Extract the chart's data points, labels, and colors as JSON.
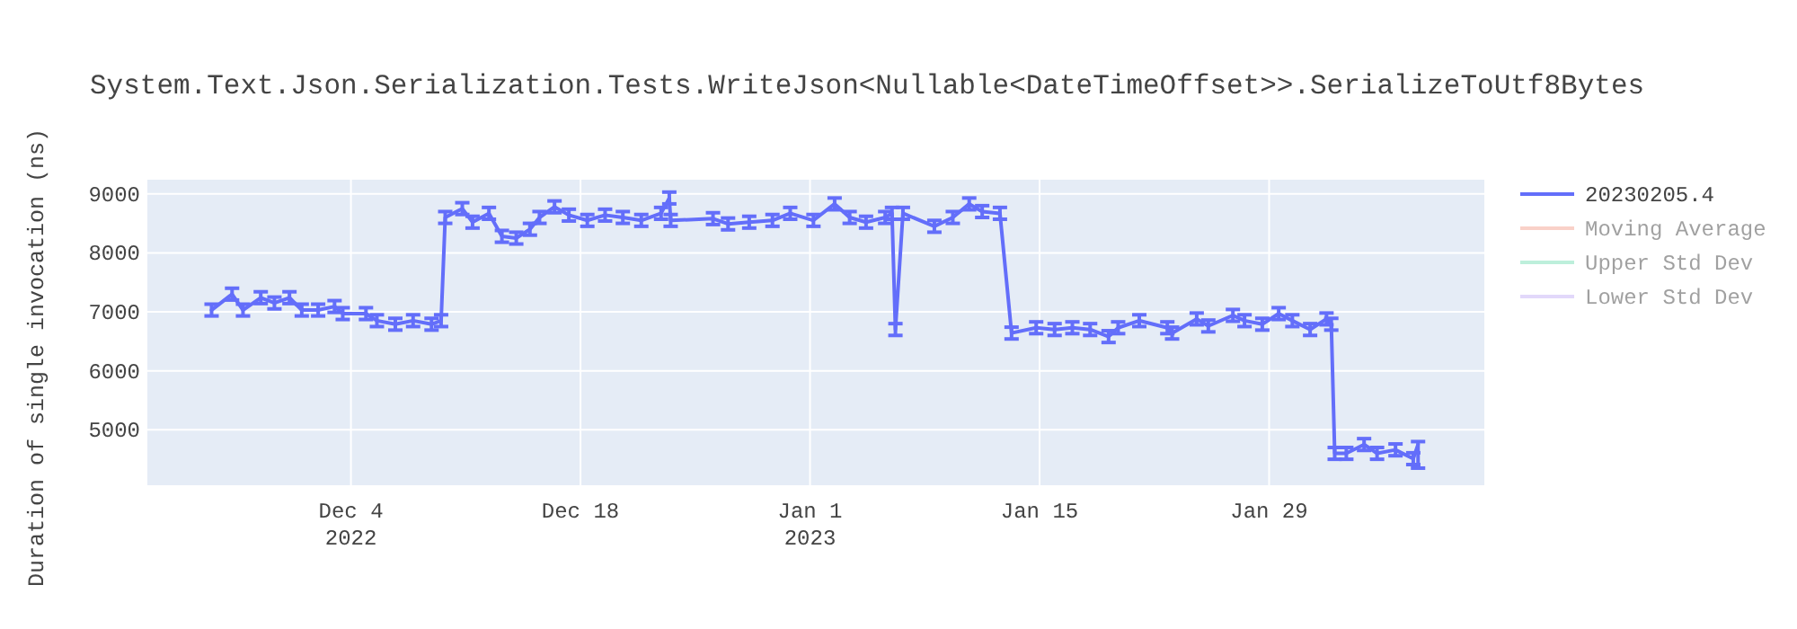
{
  "chart_data": {
    "type": "line",
    "title": "System.Text.Json.Serialization.Tests.WriteJson<Nullable<DateTimeOffset>>.SerializeToUtf8Bytes",
    "ylabel": "Duration of single invocation (ns)",
    "xlim": [
      "2022-11-21T14:00",
      "2023-02-11T03:00"
    ],
    "ylim": [
      4060,
      9240
    ],
    "xticks": [
      {
        "value": "2022-12-04",
        "label": "Dec 4\n2022"
      },
      {
        "value": "2022-12-18",
        "label": "Dec 18"
      },
      {
        "value": "2023-01-01",
        "label": "Jan 1\n2023"
      },
      {
        "value": "2023-01-15",
        "label": "Jan 15"
      },
      {
        "value": "2023-01-29",
        "label": "Jan 29"
      }
    ],
    "yticks": [
      5000,
      6000,
      7000,
      8000,
      9000
    ],
    "grid": true,
    "legend": "top right",
    "series": [
      {
        "name": "20230205.4",
        "color": "#636efa",
        "x": [
          "2022-11-25T12:00",
          "2022-11-26T18:00",
          "2022-11-27T10:00",
          "2022-11-28T12:00",
          "2022-11-29T08:00",
          "2022-11-30T06:00",
          "2022-12-01",
          "2022-12-02",
          "2022-12-03",
          "2022-12-03T12:00",
          "2022-12-04T22:00",
          "2022-12-05T14:00",
          "2022-12-06T17:00",
          "2022-12-07T19:00",
          "2022-12-08T22:00",
          "2022-12-09T12:00",
          "2022-12-09T18:00",
          "2022-12-10T19:00",
          "2022-12-11T10:00",
          "2022-12-12T10:00",
          "2022-12-13T05:00",
          "2022-12-14T02:00",
          "2022-12-14T22:00",
          "2022-12-15T12:00",
          "2022-12-16T10:00",
          "2022-12-17T07:00",
          "2022-12-18T10:00",
          "2022-12-19T12:00",
          "2022-12-20T14:00",
          "2022-12-21T17:00",
          "2022-12-22T22:00",
          "2022-12-23T10:00",
          "2022-12-23T12:00",
          "2022-12-26T02:00",
          "2022-12-27",
          "2022-12-28T07:00",
          "2022-12-29T17:00",
          "2022-12-30T19:00",
          "2023-01-01T05:00",
          "2023-01-02T12:00",
          "2023-01-03T10:00",
          "2023-01-04T10:00",
          "2023-01-05T14:00",
          "2023-01-06",
          "2023-01-06T05:00",
          "2023-01-06T16:00",
          "2023-01-08T14:00",
          "2023-01-09T17:00",
          "2023-01-10T17:00",
          "2023-01-11T12:00",
          "2023-01-12T14:00",
          "2023-01-13T07:00",
          "2023-01-14T19:00",
          "2023-01-15T22:00",
          "2023-01-17",
          "2023-01-18T02:00",
          "2023-01-19T05:00",
          "2023-01-19T19:00",
          "2023-01-21T02:00",
          "2023-01-22T19:00",
          "2023-01-23T02:00",
          "2023-01-24T14:00",
          "2023-01-25T07:00",
          "2023-01-26T19:00",
          "2023-01-27T12:00",
          "2023-01-28T14:00",
          "2023-01-29T14:00",
          "2023-01-30T10:00",
          "2023-01-31T12:00",
          "2023-02-01T12:00",
          "2023-02-01T19:00",
          "2023-02-02",
          "2023-02-02T17:00",
          "2023-02-03T19:00",
          "2023-02-04T14:00",
          "2023-02-05T17:00",
          "2023-02-06T19:00",
          "2023-02-07T02:00"
        ],
        "values": [
          7030,
          7300,
          7030,
          7240,
          7150,
          7240,
          7030,
          7030,
          7090,
          6970,
          6970,
          6850,
          6790,
          6850,
          6790,
          6850,
          8600,
          8750,
          8520,
          8670,
          8280,
          8250,
          8400,
          8600,
          8780,
          8640,
          8550,
          8640,
          8600,
          8550,
          8670,
          8930,
          8550,
          8580,
          8490,
          8520,
          8550,
          8670,
          8550,
          8830,
          8600,
          8520,
          8600,
          8670,
          6700,
          8670,
          8450,
          8600,
          8830,
          8700,
          8670,
          6640,
          6730,
          6700,
          6730,
          6700,
          6580,
          6730,
          6850,
          6730,
          6640,
          6880,
          6760,
          6940,
          6850,
          6790,
          6970,
          6850,
          6700,
          6880,
          6790,
          4600,
          4600,
          4750,
          4600,
          4660,
          4510,
          4750
        ],
        "errors": [
          100,
          100,
          100,
          100,
          100,
          100,
          100,
          100,
          100,
          100,
          100,
          100,
          100,
          100,
          100,
          100,
          100,
          100,
          100,
          100,
          100,
          100,
          100,
          100,
          100,
          100,
          100,
          100,
          100,
          100,
          100,
          100,
          100,
          100,
          100,
          100,
          100,
          100,
          100,
          100,
          100,
          100,
          100,
          100,
          100,
          100,
          100,
          100,
          100,
          100,
          100,
          100,
          100,
          100,
          100,
          100,
          100,
          100,
          100,
          100,
          100,
          100,
          100,
          100,
          100,
          100,
          100,
          100,
          100,
          100,
          100,
          100,
          100,
          100,
          100,
          100,
          100,
          [
            4350,
            4800
          ]
        ]
      },
      {
        "name": "Moving Average",
        "color": "#f5a493"
      },
      {
        "name": "Upper Std Dev",
        "color": "#7ee0b8"
      },
      {
        "name": "Lower Std Dev",
        "color": "#c6b3f7"
      }
    ]
  }
}
